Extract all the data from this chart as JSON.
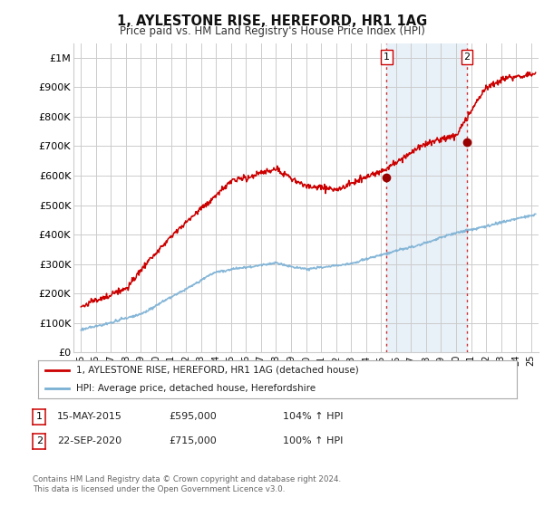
{
  "title": "1, AYLESTONE RISE, HEREFORD, HR1 1AG",
  "subtitle": "Price paid vs. HM Land Registry's House Price Index (HPI)",
  "ylabel_ticks": [
    "£0",
    "£100K",
    "£200K",
    "£300K",
    "£400K",
    "£500K",
    "£600K",
    "£700K",
    "£800K",
    "£900K",
    "£1M"
  ],
  "ytick_values": [
    0,
    100000,
    200000,
    300000,
    400000,
    500000,
    600000,
    700000,
    800000,
    900000,
    1000000
  ],
  "ylim": [
    0,
    1050000
  ],
  "xlim_start": 1994.5,
  "xlim_end": 2025.5,
  "line1_color": "#cc0000",
  "line2_color": "#7ab0d4",
  "marker_color": "#990000",
  "sale1_x": 2015.37,
  "sale1_y": 595000,
  "sale2_x": 2020.72,
  "sale2_y": 715000,
  "vline_color": "#cc3333",
  "highlight_bg": "#e8f0f8",
  "legend_line1": "1, AYLESTONE RISE, HEREFORD, HR1 1AG (detached house)",
  "legend_line2": "HPI: Average price, detached house, Herefordshire",
  "footnote": "Contains HM Land Registry data © Crown copyright and database right 2024.\nThis data is licensed under the Open Government Licence v3.0.",
  "bg_color": "#ffffff",
  "grid_color": "#cccccc"
}
